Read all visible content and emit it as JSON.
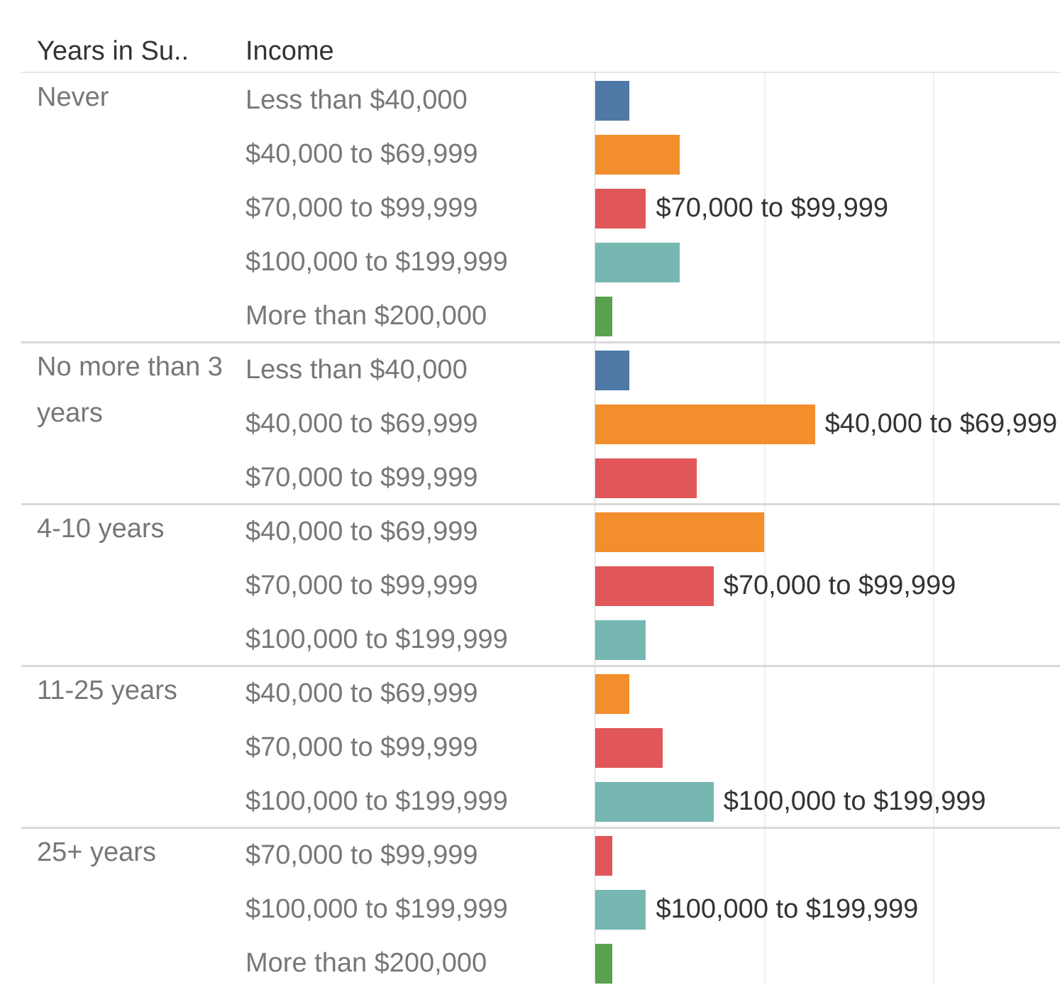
{
  "chart_data": {
    "type": "bar",
    "orientation": "horizontal",
    "column_headers": [
      "Years in Su..",
      "Income"
    ],
    "xlim": [
      0,
      27.5
    ],
    "xticks": [
      0,
      10,
      20
    ],
    "grid": true,
    "groups": [
      {
        "name": "Never",
        "rows": [
          {
            "income": "Less than $40,000",
            "value": 2,
            "color": "#4e79a7"
          },
          {
            "income": "$40,000 to $69,999",
            "value": 5,
            "color": "#f28e2b"
          },
          {
            "income": "$70,000 to $99,999",
            "value": 3,
            "color": "#e15759",
            "value_label": "$70,000 to $99,999"
          },
          {
            "income": "$100,000 to $199,999",
            "value": 5,
            "color": "#76b7b2"
          },
          {
            "income": "More than $200,000",
            "value": 1,
            "color": "#59a14f"
          }
        ]
      },
      {
        "name": "No more than 3 years",
        "rows": [
          {
            "income": "Less than $40,000",
            "value": 2,
            "color": "#4e79a7"
          },
          {
            "income": "$40,000 to $69,999",
            "value": 13,
            "color": "#f28e2b",
            "value_label": "$40,000 to $69,999"
          },
          {
            "income": "$70,000 to $99,999",
            "value": 6,
            "color": "#e15759"
          }
        ]
      },
      {
        "name": "4-10 years",
        "rows": [
          {
            "income": "$40,000 to $69,999",
            "value": 10,
            "color": "#f28e2b"
          },
          {
            "income": "$70,000 to $99,999",
            "value": 7,
            "color": "#e15759",
            "value_label": "$70,000 to $99,999"
          },
          {
            "income": "$100,000 to $199,999",
            "value": 3,
            "color": "#76b7b2"
          }
        ]
      },
      {
        "name": "11-25 years",
        "rows": [
          {
            "income": "$40,000 to $69,999",
            "value": 2,
            "color": "#f28e2b"
          },
          {
            "income": "$70,000 to $99,999",
            "value": 4,
            "color": "#e15759"
          },
          {
            "income": "$100,000 to $199,999",
            "value": 7,
            "color": "#76b7b2",
            "value_label": "$100,000 to $199,999"
          }
        ]
      },
      {
        "name": "25+ years",
        "rows": [
          {
            "income": "$70,000 to $99,999",
            "value": 1,
            "color": "#e15759"
          },
          {
            "income": "$100,000 to $199,999",
            "value": 3,
            "color": "#76b7b2",
            "value_label": "$100,000 to $199,999"
          },
          {
            "income": "More than $200,000",
            "value": 1,
            "color": "#59a14f"
          }
        ]
      }
    ]
  }
}
